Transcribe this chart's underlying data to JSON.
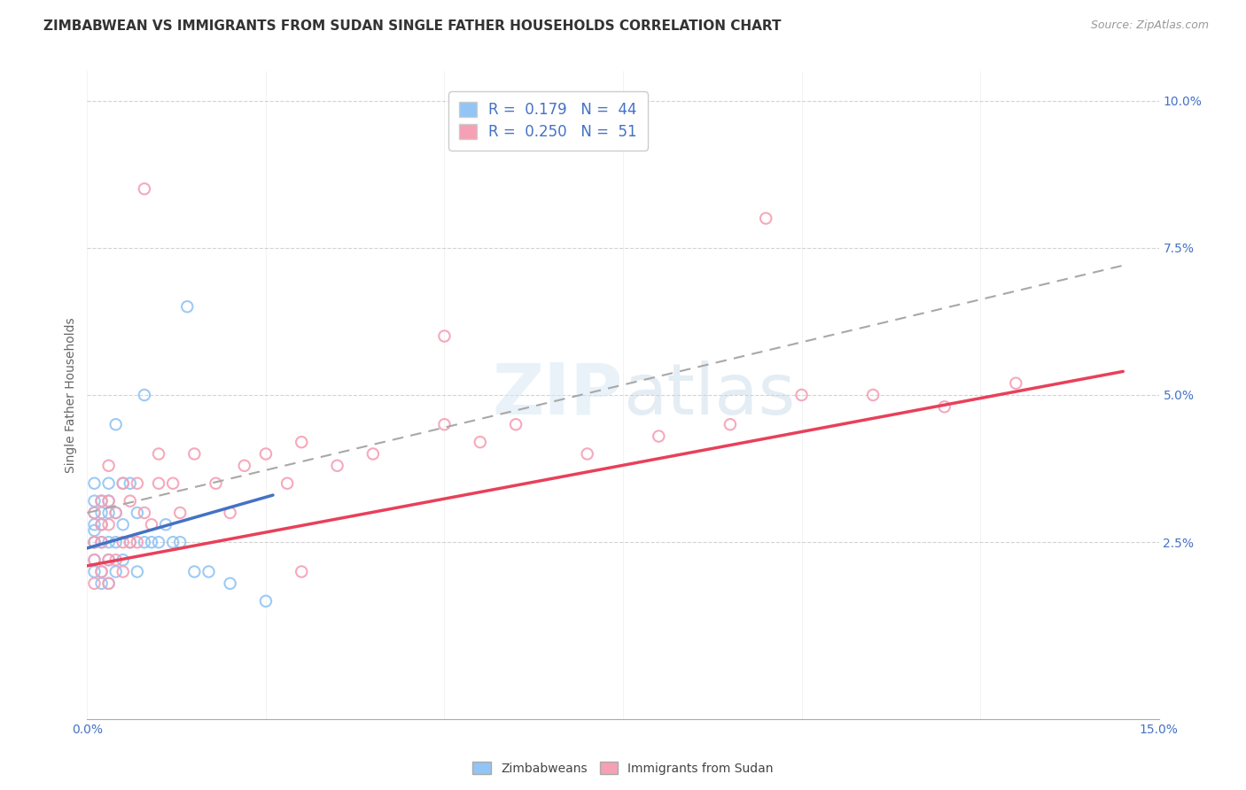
{
  "title": "ZIMBABWEAN VS IMMIGRANTS FROM SUDAN SINGLE FATHER HOUSEHOLDS CORRELATION CHART",
  "source": "Source: ZipAtlas.com",
  "ylabel": "Single Father Households",
  "xlim": [
    0.0,
    0.15
  ],
  "ylim": [
    -0.005,
    0.105
  ],
  "legend_r1": "R =  0.179   N =  44",
  "legend_r2": "R =  0.250   N =  51",
  "blue_dot_color": "#92C5F5",
  "pink_dot_color": "#F5A0B5",
  "trend_blue": "#4472C4",
  "trend_pink": "#E8405A",
  "trend_dashed_color": "#A8A8A8",
  "background_color": "#FFFFFF",
  "grid_color": "#C8C8C8",
  "title_fontsize": 11,
  "axis_label_fontsize": 10,
  "tick_fontsize": 10,
  "legend_fontsize": 12,
  "blue_x": [
    0.001,
    0.001,
    0.001,
    0.001,
    0.001,
    0.001,
    0.001,
    0.001,
    0.001,
    0.002,
    0.002,
    0.002,
    0.002,
    0.002,
    0.002,
    0.003,
    0.003,
    0.003,
    0.003,
    0.003,
    0.003,
    0.004,
    0.004,
    0.004,
    0.004,
    0.005,
    0.005,
    0.005,
    0.006,
    0.006,
    0.007,
    0.007,
    0.008,
    0.009,
    0.01,
    0.011,
    0.012,
    0.013,
    0.015,
    0.017,
    0.02,
    0.025,
    0.008,
    0.014
  ],
  "blue_y": [
    0.02,
    0.022,
    0.025,
    0.025,
    0.027,
    0.028,
    0.03,
    0.032,
    0.035,
    0.018,
    0.02,
    0.025,
    0.028,
    0.03,
    0.032,
    0.018,
    0.022,
    0.025,
    0.03,
    0.032,
    0.035,
    0.02,
    0.025,
    0.03,
    0.045,
    0.022,
    0.028,
    0.035,
    0.025,
    0.035,
    0.02,
    0.03,
    0.025,
    0.025,
    0.025,
    0.028,
    0.025,
    0.025,
    0.02,
    0.02,
    0.018,
    0.015,
    0.05,
    0.065
  ],
  "pink_x": [
    0.001,
    0.001,
    0.001,
    0.001,
    0.002,
    0.002,
    0.002,
    0.002,
    0.003,
    0.003,
    0.003,
    0.003,
    0.003,
    0.004,
    0.004,
    0.005,
    0.005,
    0.005,
    0.006,
    0.006,
    0.007,
    0.007,
    0.008,
    0.009,
    0.01,
    0.01,
    0.012,
    0.013,
    0.015,
    0.018,
    0.02,
    0.022,
    0.025,
    0.028,
    0.03,
    0.035,
    0.04,
    0.05,
    0.055,
    0.06,
    0.07,
    0.08,
    0.09,
    0.1,
    0.11,
    0.12,
    0.13,
    0.008,
    0.095,
    0.03,
    0.05
  ],
  "pink_y": [
    0.018,
    0.022,
    0.025,
    0.03,
    0.02,
    0.025,
    0.028,
    0.032,
    0.018,
    0.022,
    0.028,
    0.032,
    0.038,
    0.022,
    0.03,
    0.02,
    0.025,
    0.035,
    0.025,
    0.032,
    0.025,
    0.035,
    0.03,
    0.028,
    0.035,
    0.04,
    0.035,
    0.03,
    0.04,
    0.035,
    0.03,
    0.038,
    0.04,
    0.035,
    0.042,
    0.038,
    0.04,
    0.045,
    0.042,
    0.045,
    0.04,
    0.043,
    0.045,
    0.05,
    0.05,
    0.048,
    0.052,
    0.085,
    0.08,
    0.02,
    0.06
  ],
  "blue_line_x0": 0.0,
  "blue_line_x1": 0.026,
  "blue_line_y0": 0.024,
  "blue_line_y1": 0.033,
  "pink_line_x0": 0.0,
  "pink_line_x1": 0.145,
  "pink_line_y0": 0.021,
  "pink_line_y1": 0.054,
  "dash_line_x0": 0.0,
  "dash_line_x1": 0.145,
  "dash_line_y0": 0.03,
  "dash_line_y1": 0.072
}
